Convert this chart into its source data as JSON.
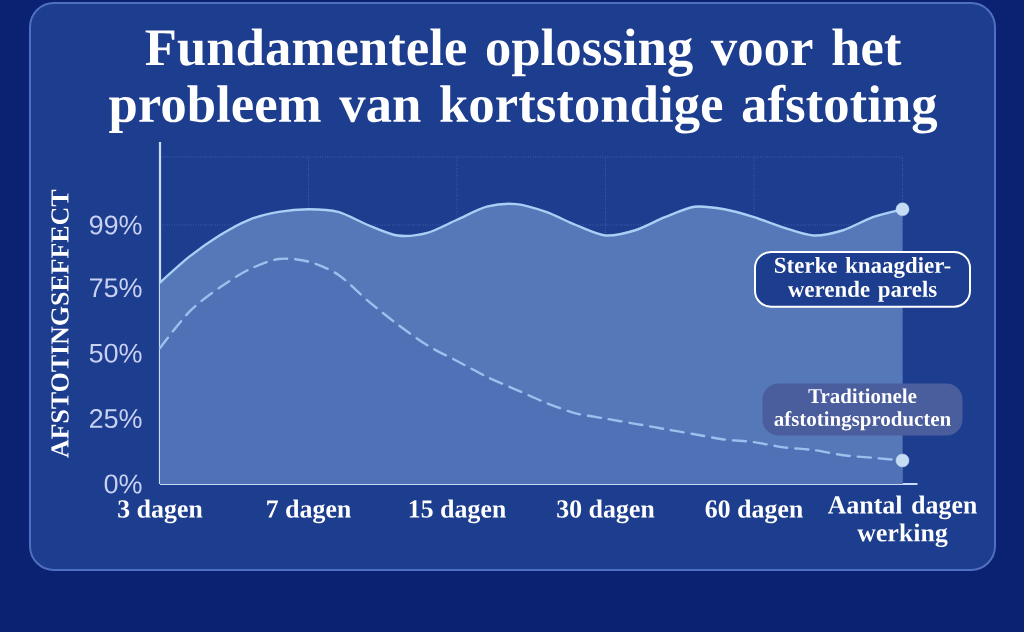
{
  "chart_data": {
    "type": "area",
    "title": "Fundamentele oplossing voor het probleem van kortstondige afstoting",
    "xlabel": "Aantal dagen werking",
    "ylabel": "AFSTOTINGSEFFECT",
    "categories": [
      "3 dagen",
      null,
      null,
      null,
      null,
      "7 dagen",
      null,
      null,
      null,
      null,
      "15 dagen",
      null,
      null,
      null,
      null,
      "30 dagen",
      null,
      null,
      null,
      null,
      "60 dagen",
      null,
      null,
      null,
      null,
      null
    ],
    "ylim": [
      0,
      125
    ],
    "yticks": [
      {
        "value": 0,
        "label": "0%"
      },
      {
        "value": 25,
        "label": "25%"
      },
      {
        "value": 50,
        "label": "50%"
      },
      {
        "value": 75,
        "label": "75%"
      },
      {
        "value": 99,
        "label": "99%"
      },
      {
        "value": 125,
        "label": null
      }
    ],
    "grid": true,
    "series": [
      {
        "name": "Sterke knaagdier-werende parels",
        "color": "#a8d0f5",
        "line_style": "solid",
        "values": [
          77,
          87,
          95,
          101,
          104,
          105,
          104,
          99,
          95,
          96,
          101,
          106,
          107,
          104,
          99,
          95,
          97,
          102,
          106,
          105,
          102,
          98,
          95,
          97,
          102,
          105
        ]
      },
      {
        "name": "Traditionele afstotingsproducten",
        "color": "#9cc0ee",
        "line_style": "dashed",
        "values": [
          52,
          66,
          75,
          82,
          86,
          85,
          80,
          70,
          61,
          53,
          47,
          41,
          36,
          31,
          27,
          25,
          23,
          21,
          19,
          17,
          16,
          14,
          13,
          11,
          10,
          9
        ]
      },
      {
        "type": "scatter",
        "color": "#c5dcf5",
        "marker": "circle",
        "values": [
          null,
          null,
          null,
          null,
          null,
          null,
          null,
          null,
          null,
          null,
          null,
          null,
          null,
          null,
          null,
          null,
          null,
          null,
          null,
          null,
          null,
          null,
          null,
          null,
          null,
          105
        ]
      },
      {
        "type": "scatter",
        "color": "#c5dcf5",
        "marker": "circle",
        "values": [
          null,
          null,
          null,
          null,
          null,
          null,
          null,
          null,
          null,
          null,
          null,
          null,
          null,
          null,
          null,
          null,
          null,
          null,
          null,
          null,
          null,
          null,
          null,
          null,
          null,
          9
        ]
      }
    ]
  }
}
